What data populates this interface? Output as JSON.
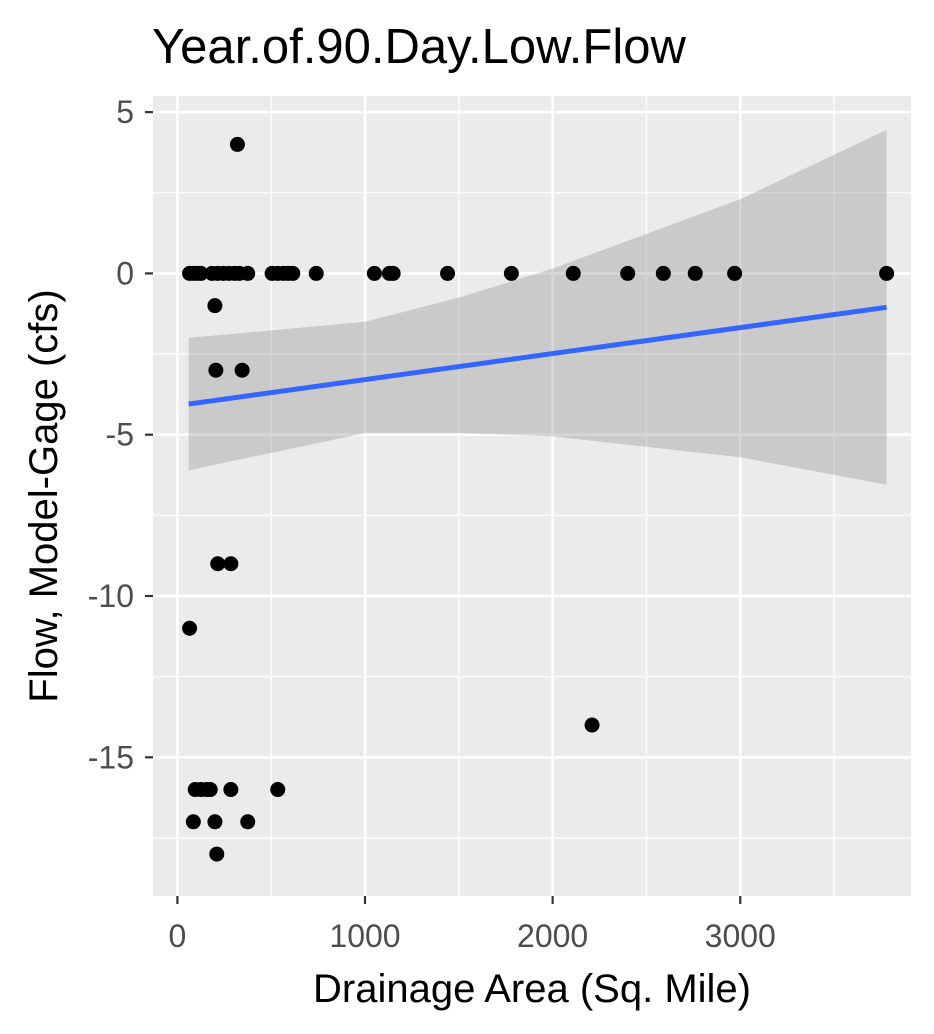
{
  "chart_data": {
    "type": "scatter",
    "title": "Year.of.90.Day.Low.Flow",
    "xlabel": "Drainage Area (Sq. Mile)",
    "ylabel": "Flow, Model-Gage (cfs)",
    "xlim": [
      -130,
      3910
    ],
    "ylim": [
      -19.3,
      5.5
    ],
    "xticks": [
      0,
      1000,
      2000,
      3000
    ],
    "xtick_labels": [
      "0",
      "1000",
      "2000",
      "3000"
    ],
    "yticks": [
      5,
      0,
      -5,
      -10,
      -15
    ],
    "ytick_labels": [
      "5",
      "0",
      "-5",
      "-10",
      "-15"
    ],
    "grid": true,
    "legend": "none",
    "colors": {
      "panel": "#ebebeb",
      "grid": "#ffffff",
      "points": "#000000",
      "fit_line": "#3366ff",
      "confidence_band": "#999999"
    },
    "points": [
      {
        "x": 320,
        "y": 4
      },
      {
        "x": 65,
        "y": 0
      },
      {
        "x": 85,
        "y": 0
      },
      {
        "x": 105,
        "y": 0
      },
      {
        "x": 125,
        "y": 0
      },
      {
        "x": 185,
        "y": 0
      },
      {
        "x": 215,
        "y": 0
      },
      {
        "x": 245,
        "y": 0
      },
      {
        "x": 275,
        "y": 0
      },
      {
        "x": 305,
        "y": 0
      },
      {
        "x": 330,
        "y": 0
      },
      {
        "x": 375,
        "y": 0
      },
      {
        "x": 505,
        "y": 0
      },
      {
        "x": 535,
        "y": 0
      },
      {
        "x": 565,
        "y": 0
      },
      {
        "x": 590,
        "y": 0
      },
      {
        "x": 615,
        "y": 0
      },
      {
        "x": 740,
        "y": 0
      },
      {
        "x": 1050,
        "y": 0
      },
      {
        "x": 1130,
        "y": 0
      },
      {
        "x": 1150,
        "y": 0
      },
      {
        "x": 1440,
        "y": 0
      },
      {
        "x": 1780,
        "y": 0
      },
      {
        "x": 2110,
        "y": 0
      },
      {
        "x": 2400,
        "y": 0
      },
      {
        "x": 2590,
        "y": 0
      },
      {
        "x": 2760,
        "y": 0
      },
      {
        "x": 2970,
        "y": 0
      },
      {
        "x": 3780,
        "y": 0
      },
      {
        "x": 200,
        "y": -1
      },
      {
        "x": 205,
        "y": -3
      },
      {
        "x": 345,
        "y": -3
      },
      {
        "x": 215,
        "y": -9
      },
      {
        "x": 285,
        "y": -9
      },
      {
        "x": 65,
        "y": -11
      },
      {
        "x": 2210,
        "y": -14
      },
      {
        "x": 95,
        "y": -16
      },
      {
        "x": 125,
        "y": -16
      },
      {
        "x": 155,
        "y": -16
      },
      {
        "x": 175,
        "y": -16
      },
      {
        "x": 285,
        "y": -16
      },
      {
        "x": 535,
        "y": -16
      },
      {
        "x": 85,
        "y": -17
      },
      {
        "x": 200,
        "y": -17
      },
      {
        "x": 375,
        "y": -17
      },
      {
        "x": 210,
        "y": -18
      }
    ],
    "fit_line": {
      "x": [
        60,
        3780
      ],
      "y": [
        -4.05,
        -1.05
      ]
    },
    "confidence_band": {
      "x": [
        60,
        1000,
        1500,
        2000,
        3000,
        3780
      ],
      "lower": [
        -6.1,
        -4.95,
        -4.95,
        -5.05,
        -5.7,
        -6.55
      ],
      "upper": [
        -2.0,
        -1.5,
        -0.75,
        0.15,
        2.3,
        4.45
      ]
    }
  }
}
